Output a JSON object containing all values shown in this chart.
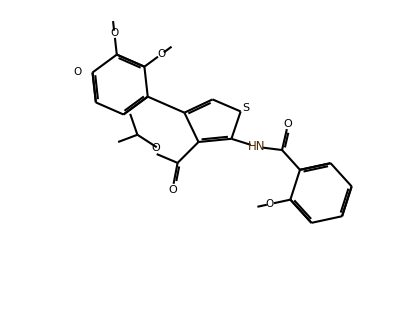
{
  "bg_color": "#ffffff",
  "line_color": "#000000",
  "dark_red_color": "#8B0000",
  "line_width": 1.5,
  "figsize": [
    4.05,
    3.29
  ],
  "dpi": 100,
  "xlim": [
    0,
    10
  ],
  "ylim": [
    0,
    8.12
  ]
}
